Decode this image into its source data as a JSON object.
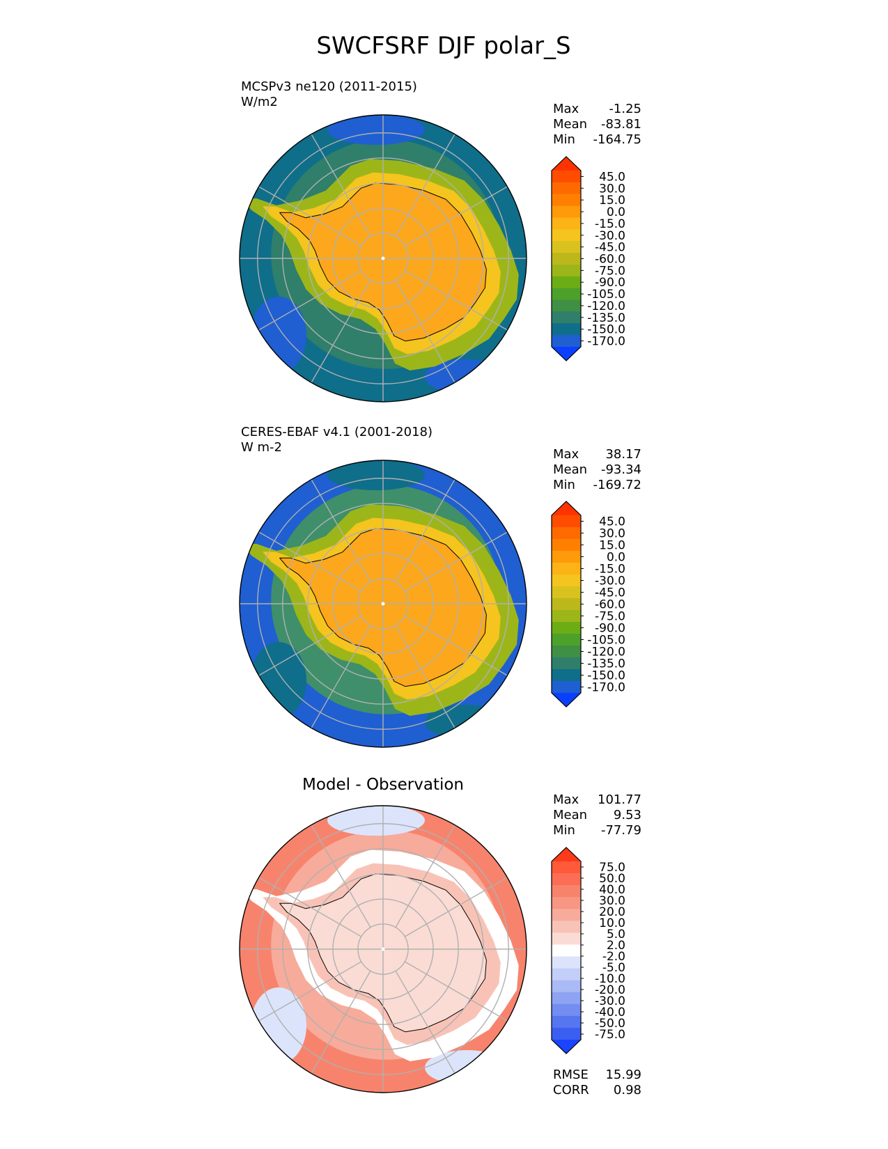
{
  "figure": {
    "title": "SWCFSRF DJF polar_S"
  },
  "panels": [
    {
      "id": "model",
      "title": "",
      "subtitle_line1": "MCSPv3 ne120 (2011-2015)",
      "subtitle_line2": "W/m2",
      "stats": [
        {
          "label": "Max",
          "value": "-1.25"
        },
        {
          "label": "Mean",
          "value": "-83.81"
        },
        {
          "label": "Min",
          "value": "-164.75"
        }
      ],
      "colorbar_ticks": [
        "45.0",
        "30.0",
        "15.0",
        "0.0",
        "-15.0",
        "-30.0",
        "-45.0",
        "-60.0",
        "-75.0",
        "-90.0",
        "-105.0",
        "-120.0",
        "-135.0",
        "-150.0",
        "-170.0"
      ],
      "colorbar_colors": [
        "#ff3300",
        "#ff4d00",
        "#ff6a00",
        "#ff8000",
        "#ff9a0a",
        "#fbb316",
        "#f5c41e",
        "#d9c21e",
        "#bcb81c",
        "#9cb61a",
        "#6cad16",
        "#4da12a",
        "#3f8f45",
        "#2f7f6a",
        "#0f6e8a",
        "#1f5fd1",
        "#0a3fff"
      ],
      "field_colors": {
        "interior": "#fca71c",
        "coast": "#f5c41e",
        "ice_edge": "#9cb61a",
        "ocean": "#2f7f6a",
        "outer": "#0f6e8a",
        "patch": "#1f5fd1"
      }
    },
    {
      "id": "obs",
      "title": "",
      "subtitle_line1": "CERES-EBAF v4.1 (2001-2018)",
      "subtitle_line2": "W m-2",
      "stats": [
        {
          "label": "Max",
          "value": "38.17"
        },
        {
          "label": "Mean",
          "value": "-93.34"
        },
        {
          "label": "Min",
          "value": "-169.72"
        }
      ],
      "colorbar_ticks": [
        "45.0",
        "30.0",
        "15.0",
        "0.0",
        "-15.0",
        "-30.0",
        "-45.0",
        "-60.0",
        "-75.0",
        "-90.0",
        "-105.0",
        "-120.0",
        "-135.0",
        "-150.0",
        "-170.0"
      ],
      "colorbar_colors": [
        "#ff3300",
        "#ff4d00",
        "#ff6a00",
        "#ff8000",
        "#ff9a0a",
        "#fbb316",
        "#f5c41e",
        "#d9c21e",
        "#bcb81c",
        "#9cb61a",
        "#6cad16",
        "#4da12a",
        "#3f8f45",
        "#2f7f6a",
        "#0f6e8a",
        "#1f5fd1",
        "#0a3fff"
      ],
      "field_colors": {
        "interior": "#fca71c",
        "coast": "#f5c41e",
        "ice_edge": "#9cb61a",
        "ocean": "#3f8f6a",
        "outer": "#1f5fd1",
        "patch": "#0f6e8a"
      }
    },
    {
      "id": "diff",
      "title": "Model - Observation",
      "subtitle_line1": "",
      "subtitle_line2": "",
      "stats": [
        {
          "label": "Max",
          "value": "101.77"
        },
        {
          "label": "Mean",
          "value": "9.53"
        },
        {
          "label": "Min",
          "value": "-77.79"
        }
      ],
      "extra_stats": [
        {
          "label": "RMSE",
          "value": "15.99"
        },
        {
          "label": "CORR",
          "value": "0.98"
        }
      ],
      "colorbar_ticks": [
        "75.0",
        "50.0",
        "40.0",
        "30.0",
        "20.0",
        "10.0",
        "5.0",
        "2.0",
        "-2.0",
        "-5.0",
        "-10.0",
        "-20.0",
        "-30.0",
        "-40.0",
        "-50.0",
        "-75.0"
      ],
      "colorbar_colors": [
        "#ff3a1a",
        "#ff5a3a",
        "#fb6e55",
        "#f8836c",
        "#f79683",
        "#f7ab9b",
        "#f8c3b6",
        "#fadcd4",
        "#ffffff",
        "#dce4fb",
        "#c3cff8",
        "#a9baf5",
        "#8ea4f2",
        "#738ef0",
        "#5676ef",
        "#3a5ff0",
        "#1a44ff"
      ],
      "field_colors": {
        "interior": "#fadcd4",
        "coast": "#f8c3b6",
        "ice_edge": "#ffffff",
        "ocean": "#f7ab9b",
        "outer": "#f8836c",
        "patch": "#dce4fb"
      }
    }
  ],
  "chart_data": {
    "type": "polar_map",
    "title": "SWCFSRF DJF polar_S",
    "variable": "SWCFSRF",
    "season": "DJF",
    "region": "polar_S",
    "maps": [
      {
        "name": "MCSPv3 ne120 (2011-2015)",
        "units": "W/m2",
        "max": -1.25,
        "mean": -83.81,
        "min": -164.75,
        "contour_levels": [
          -170,
          -150,
          -135,
          -120,
          -105,
          -90,
          -75,
          -60,
          -45,
          -30,
          -15,
          0,
          15,
          30,
          45
        ]
      },
      {
        "name": "CERES-EBAF v4.1 (2001-2018)",
        "units": "W m-2",
        "max": 38.17,
        "mean": -93.34,
        "min": -169.72,
        "contour_levels": [
          -170,
          -150,
          -135,
          -120,
          -105,
          -90,
          -75,
          -60,
          -45,
          -30,
          -15,
          0,
          15,
          30,
          45
        ]
      },
      {
        "name": "Model - Observation",
        "max": 101.77,
        "mean": 9.53,
        "min": -77.79,
        "rmse": 15.99,
        "corr": 0.98,
        "contour_levels": [
          -75,
          -50,
          -40,
          -30,
          -20,
          -10,
          -5,
          -2,
          2,
          5,
          10,
          20,
          30,
          40,
          50,
          75
        ]
      }
    ]
  }
}
